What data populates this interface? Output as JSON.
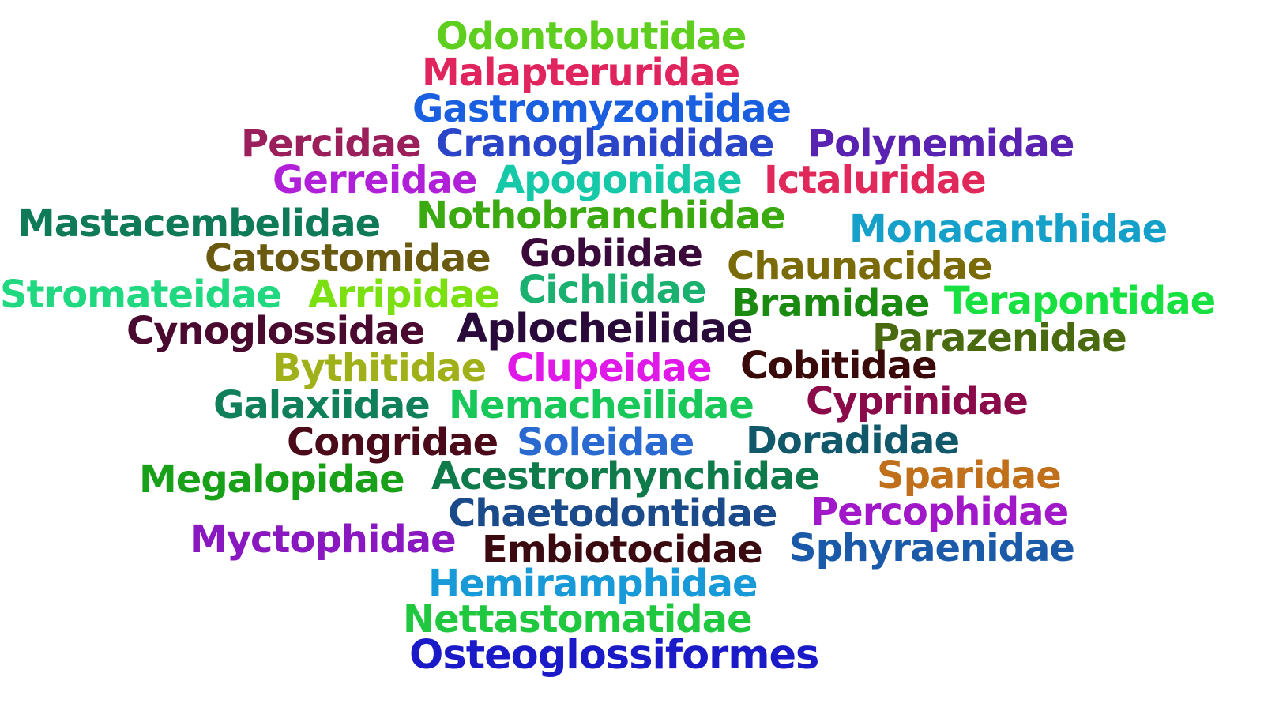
{
  "words": [
    {
      "text": "Odontobutidae",
      "color": "#5fcf1f"
    },
    {
      "text": "Malapteruridae",
      "color": "#e0245e"
    },
    {
      "text": "Gastromyzontidae",
      "color": "#1a5fe0"
    },
    {
      "text": "Percidae",
      "color": "#9a1f5a"
    },
    {
      "text": "Cranoglanididae",
      "color": "#2a45c8"
    },
    {
      "text": "Polynemidae",
      "color": "#5a22b0"
    },
    {
      "text": "Gerreidae",
      "color": "#b020d8"
    },
    {
      "text": "Apogonidae",
      "color": "#14c8a8"
    },
    {
      "text": "Ictaluridae",
      "color": "#e0285a"
    },
    {
      "text": "Mastacembelidae",
      "color": "#0f7a58"
    },
    {
      "text": "Nothobranchiidae",
      "color": "#3aaa10"
    },
    {
      "text": "Monacanthidae",
      "color": "#14a0c8"
    },
    {
      "text": "Catostomidae",
      "color": "#6a5a10"
    },
    {
      "text": "Gobiidae",
      "color": "#3a0a3a"
    },
    {
      "text": "Chaunacidae",
      "color": "#7a6a08"
    },
    {
      "text": "Stromateidae",
      "color": "#20d880"
    },
    {
      "text": "Arripidae",
      "color": "#7ae010"
    },
    {
      "text": "Cichlidae",
      "color": "#1ab070"
    },
    {
      "text": "Bramidae",
      "color": "#1a8a10"
    },
    {
      "text": "Terapontidae",
      "color": "#18e040"
    },
    {
      "text": "Cynoglossidae",
      "color": "#4a0a30"
    },
    {
      "text": "Aplocheilidae",
      "color": "#2a0a3a"
    },
    {
      "text": "Parazenidae",
      "color": "#4a6a10"
    },
    {
      "text": "Bythitidae",
      "color": "#a0b018"
    },
    {
      "text": "Clupeidae",
      "color": "#e018e8"
    },
    {
      "text": "Cobitidae",
      "color": "#3a0a0a"
    },
    {
      "text": "Galaxiidae",
      "color": "#10805a"
    },
    {
      "text": "Nemacheilidae",
      "color": "#18c858"
    },
    {
      "text": "Cyprinidae",
      "color": "#8a0a4a"
    },
    {
      "text": "Congridae",
      "color": "#4a0a1a"
    },
    {
      "text": "Soleidae",
      "color": "#2a6ad0"
    },
    {
      "text": "Doradidae",
      "color": "#10586a"
    },
    {
      "text": "Megalopidae",
      "color": "#18a018"
    },
    {
      "text": "Acestrorhynchidae",
      "color": "#0f7a4a"
    },
    {
      "text": "Sparidae",
      "color": "#c0701a"
    },
    {
      "text": "Chaetodontidae",
      "color": "#1a4a8a"
    },
    {
      "text": "Percophidae",
      "color": "#a018c8"
    },
    {
      "text": "Myctophidae",
      "color": "#8a18c0"
    },
    {
      "text": "Embiotocidae",
      "color": "#3a0a10"
    },
    {
      "text": "Sphyraenidae",
      "color": "#1a5aa8"
    },
    {
      "text": "Hemiramphidae",
      "color": "#189ad8"
    },
    {
      "text": "Nettastomatidae",
      "color": "#20c840"
    },
    {
      "text": "Osteoglossiformes",
      "color": "#1a1ac8"
    }
  ]
}
